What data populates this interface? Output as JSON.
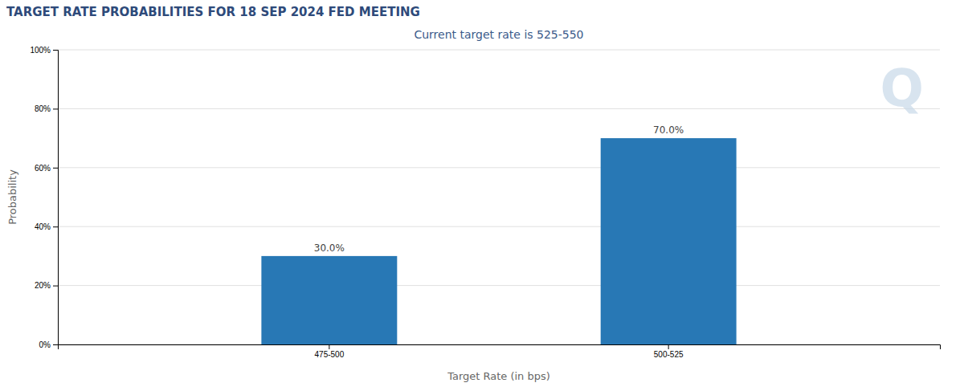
{
  "chart_data": {
    "type": "bar",
    "title": "TARGET RATE PROBABILITIES FOR 18 SEP 2024 FED MEETING",
    "subtitle": "Current target rate is 525-550",
    "xlabel": "Target Rate (in bps)",
    "ylabel": "Probability",
    "categories": [
      "475-500",
      "500-525"
    ],
    "values": [
      30.0,
      70.0
    ],
    "value_labels": [
      "30.0%",
      "70.0%"
    ],
    "data_labels": true,
    "color": "#2878b5",
    "ylim": [
      0,
      100
    ],
    "yticks": [
      {
        "value": 0,
        "label": "0%"
      },
      {
        "value": 20,
        "label": "20%"
      },
      {
        "value": 40,
        "label": "40%"
      },
      {
        "value": 60,
        "label": "60%"
      },
      {
        "value": 80,
        "label": "80%"
      },
      {
        "value": 100,
        "label": "100%"
      }
    ],
    "grid": true,
    "annotations": [
      "Q"
    ]
  }
}
